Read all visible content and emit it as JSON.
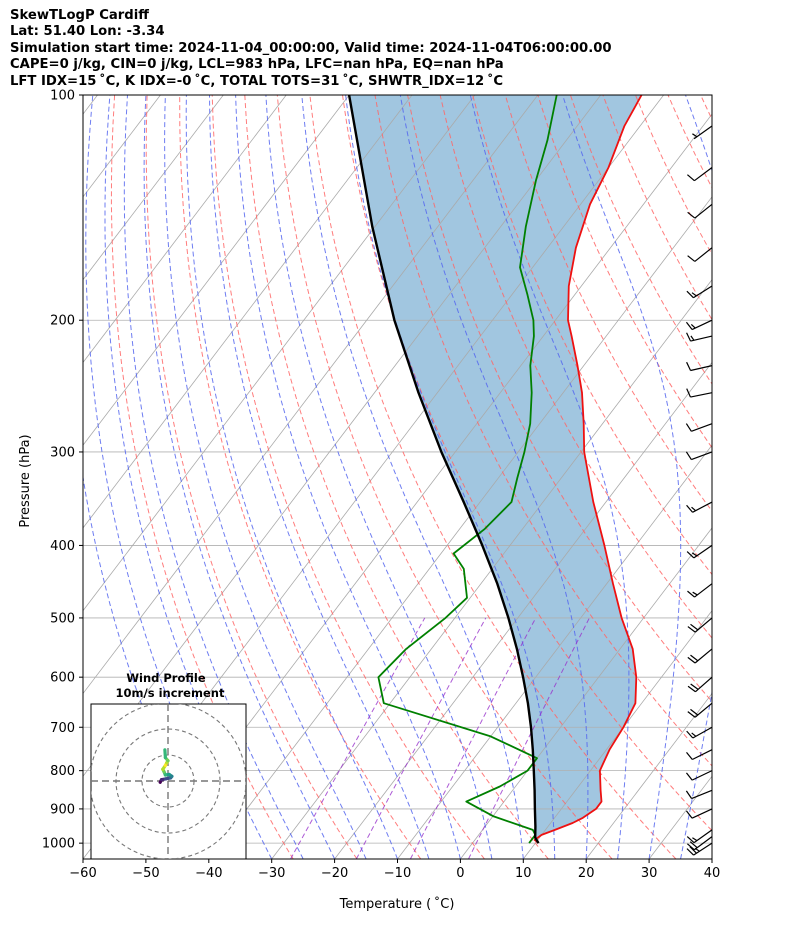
{
  "header": {
    "line1": "SkewTLogP Cardiff",
    "line2": "Lat: 51.40   Lon: -3.34",
    "line3": "Simulation start time: 2024-11-04_00:00:00, Valid time: 2024-11-04T06:00:00.00",
    "line4": "CAPE=0 j/kg, CIN=0 j/kg, LCL=983 hPa, LFC=nan hPa, EQ=nan hPa",
    "line5": "LFT IDX=15 ˚C, K IDX=-0 ˚C, TOTAL TOTS=31 ˚C, SHWTR_IDX=12 ˚C"
  },
  "chart_data": {
    "type": "line",
    "xlabel": "Temperature ( ˚C)",
    "ylabel": "Pressure (hPa)",
    "xlim": [
      -60,
      40
    ],
    "ylim": [
      1050,
      100
    ],
    "y_scale": "log",
    "x_ticks": [
      -60,
      -50,
      -40,
      -30,
      -20,
      -10,
      0,
      10,
      20,
      30,
      40
    ],
    "y_ticks": [
      100,
      200,
      300,
      400,
      500,
      600,
      700,
      800,
      900,
      1000
    ],
    "grid": true,
    "colors": {
      "temperature": "#ee1111",
      "dewpoint": "#008000",
      "parcel": "#000000",
      "cape_fill": "#a1c6e0",
      "dry_adiabats": "#ff6666",
      "moist_adiabats": "#5566ee",
      "mixing_ratio": "#9933cc",
      "isotherms": "#aaaaaa"
    },
    "series": [
      {
        "key": "temperature",
        "points": [
          [
            1000,
            10.5
          ],
          [
            990,
            9.5
          ],
          [
            975,
            10.0
          ],
          [
            960,
            11.5
          ],
          [
            940,
            13.5
          ],
          [
            925,
            14.5
          ],
          [
            900,
            15.5
          ],
          [
            880,
            15.5
          ],
          [
            850,
            14.0
          ],
          [
            800,
            11.5
          ],
          [
            750,
            10.5
          ],
          [
            700,
            10.0
          ],
          [
            650,
            9.0
          ],
          [
            600,
            6.0
          ],
          [
            550,
            2.0
          ],
          [
            500,
            -3.5
          ],
          [
            450,
            -9.0
          ],
          [
            400,
            -15.0
          ],
          [
            350,
            -22.0
          ],
          [
            300,
            -29.5
          ],
          [
            275,
            -33.0
          ],
          [
            250,
            -37.0
          ],
          [
            230,
            -41.0
          ],
          [
            210,
            -45.5
          ],
          [
            200,
            -48.0
          ],
          [
            180,
            -52.0
          ],
          [
            160,
            -55.5
          ],
          [
            140,
            -58.5
          ],
          [
            125,
            -60.0
          ],
          [
            110,
            -62.5
          ],
          [
            100,
            -63.5
          ]
        ]
      },
      {
        "key": "dewpoint",
        "points": [
          [
            1000,
            9.0
          ],
          [
            975,
            9.0
          ],
          [
            960,
            8.0
          ],
          [
            920,
            0.0
          ],
          [
            880,
            -6.0
          ],
          [
            840,
            -2.5
          ],
          [
            800,
            0.0
          ],
          [
            770,
            0.0
          ],
          [
            720,
            -10.0
          ],
          [
            650,
            -31.0
          ],
          [
            600,
            -35.0
          ],
          [
            550,
            -34.0
          ],
          [
            500,
            -31.5
          ],
          [
            470,
            -30.5
          ],
          [
            430,
            -34.5
          ],
          [
            410,
            -38.0
          ],
          [
            380,
            -36.0
          ],
          [
            350,
            -35.0
          ],
          [
            325,
            -37.0
          ],
          [
            300,
            -39.0
          ],
          [
            275,
            -41.5
          ],
          [
            250,
            -45.0
          ],
          [
            230,
            -48.5
          ],
          [
            210,
            -51.5
          ],
          [
            200,
            -53.5
          ],
          [
            185,
            -57.5
          ],
          [
            170,
            -62.0
          ],
          [
            150,
            -66.0
          ],
          [
            130,
            -70.0
          ],
          [
            115,
            -73.0
          ],
          [
            100,
            -77.0
          ]
        ]
      },
      {
        "key": "parcel",
        "points": [
          [
            1000,
            10.5
          ],
          [
            983,
            9.3
          ],
          [
            950,
            8.0
          ],
          [
            900,
            5.8
          ],
          [
            850,
            3.5
          ],
          [
            800,
            1.0
          ],
          [
            750,
            -1.7
          ],
          [
            700,
            -4.7
          ],
          [
            650,
            -8.1
          ],
          [
            600,
            -12.0
          ],
          [
            550,
            -16.4
          ],
          [
            500,
            -21.5
          ],
          [
            450,
            -27.4
          ],
          [
            400,
            -34.4
          ],
          [
            350,
            -42.6
          ],
          [
            300,
            -52.2
          ],
          [
            250,
            -63.0
          ],
          [
            200,
            -75.6
          ],
          [
            150,
            -90.4
          ],
          [
            100,
            -110.0
          ]
        ]
      }
    ],
    "hodograph": {
      "title": "Wind Profile",
      "subtitle": "10m/s increment",
      "rings_ms": [
        10,
        20,
        30
      ],
      "uv": [
        [
          -3,
          -0.5
        ],
        [
          -2.5,
          0.5
        ],
        [
          -1,
          0.8
        ],
        [
          1,
          1.2
        ],
        [
          1.5,
          1.8
        ],
        [
          0.5,
          2.5
        ],
        [
          -1,
          2.3
        ],
        [
          -1.5,
          3.5
        ],
        [
          -2,
          4.5
        ],
        [
          -1,
          6
        ],
        [
          -0.5,
          7
        ],
        [
          0,
          7.8
        ],
        [
          -1,
          9
        ],
        [
          -1.2,
          12
        ]
      ]
    },
    "wind_barbs": [
      {
        "p": 1000,
        "u": 10.2,
        "v": 6.6
      },
      {
        "p": 980,
        "u": 8.4,
        "v": 6.3
      },
      {
        "p": 960,
        "u": 7.0,
        "v": 5.0
      },
      {
        "p": 900,
        "u": 5.4,
        "v": 2.5
      },
      {
        "p": 850,
        "u": 5.0,
        "v": 2.0
      },
      {
        "p": 800,
        "u": 4.4,
        "v": 2.1
      },
      {
        "p": 750,
        "u": 5.0,
        "v": 2.5
      },
      {
        "p": 700,
        "u": 5.7,
        "v": 3.2
      },
      {
        "p": 650,
        "u": 7.1,
        "v": 5.9
      },
      {
        "p": 600,
        "u": 8.4,
        "v": 7.4
      },
      {
        "p": 550,
        "u": 8.4,
        "v": 7.0
      },
      {
        "p": 500,
        "u": 7.1,
        "v": 6.0
      },
      {
        "p": 450,
        "u": 6.4,
        "v": 4.9
      },
      {
        "p": 400,
        "u": 6.4,
        "v": 4.4
      },
      {
        "p": 350,
        "u": 5.7,
        "v": 3.0
      },
      {
        "p": 300,
        "u": 5.7,
        "v": 2.1
      },
      {
        "p": 275,
        "u": 5.7,
        "v": 2.1
      },
      {
        "p": 250,
        "u": 5.0,
        "v": 1.0
      },
      {
        "p": 230,
        "u": 5.7,
        "v": 1.3
      },
      {
        "p": 210,
        "u": 6.4,
        "v": 1.5
      },
      {
        "p": 200,
        "u": 6.4,
        "v": 3.0
      },
      {
        "p": 180,
        "u": 5.7,
        "v": 3.6
      },
      {
        "p": 160,
        "u": 5.0,
        "v": 4.0
      },
      {
        "p": 140,
        "u": 5.0,
        "v": 4.0
      },
      {
        "p": 125,
        "u": 4.0,
        "v": 3.0
      },
      {
        "p": 110,
        "u": 2.1,
        "v": 1.5
      }
    ]
  }
}
